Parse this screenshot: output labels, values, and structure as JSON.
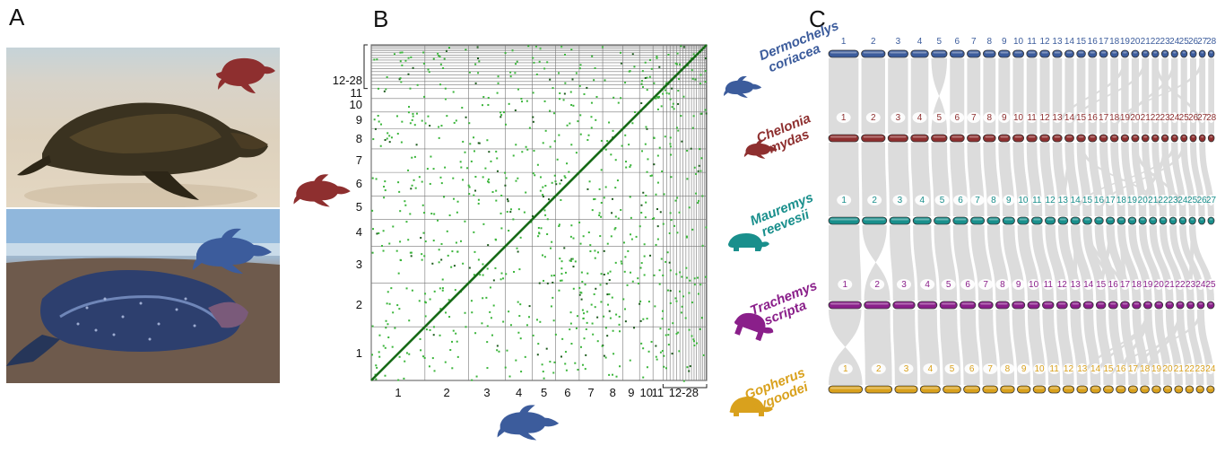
{
  "panels": {
    "a": "A",
    "b": "B",
    "c": "C"
  },
  "colors": {
    "dermochelys": "#3c5c9c",
    "chelonia": "#8e2f2f",
    "mauremys": "#198f8c",
    "trachemys": "#8a1f8a",
    "gopherus": "#d9a11d",
    "dot_green": "#3bb53b",
    "diagonal": "#176b17",
    "ribbon": "#d6d6d6"
  },
  "dotplot": {
    "y_ticks": [
      "12-28",
      "11",
      "10",
      "9",
      "8",
      "7",
      "6",
      "5",
      "4",
      "3",
      "2",
      "1"
    ],
    "x_ticks": [
      "1",
      "2",
      "3",
      "4",
      "5",
      "6",
      "7",
      "8",
      "9",
      "10",
      "11",
      "12-28"
    ]
  },
  "species": [
    {
      "genus": "Dermochelys",
      "epithet": "coriacea",
      "chromosomes": [
        "1",
        "2",
        "3",
        "4",
        "5",
        "6",
        "7",
        "8",
        "9",
        "10",
        "11",
        "12",
        "13",
        "14",
        "15",
        "16",
        "17",
        "18",
        "19",
        "20",
        "21",
        "22",
        "23",
        "24",
        "25",
        "26",
        "27",
        "28"
      ]
    },
    {
      "genus": "Chelonia",
      "epithet": "mydas",
      "chromosomes": [
        "1",
        "2",
        "3",
        "4",
        "5",
        "6",
        "7",
        "8",
        "9",
        "10",
        "11",
        "12",
        "13",
        "14",
        "15",
        "16",
        "17",
        "18",
        "19",
        "20",
        "21",
        "22",
        "23",
        "24",
        "25",
        "26",
        "27",
        "28"
      ]
    },
    {
      "genus": "Mauremys",
      "epithet": "reevesii",
      "chromosomes": [
        "1",
        "2",
        "3",
        "4",
        "5",
        "6",
        "7",
        "8",
        "9",
        "10",
        "11",
        "12",
        "13",
        "14",
        "15",
        "16",
        "17",
        "18",
        "19",
        "20",
        "21",
        "22",
        "23",
        "24",
        "25",
        "26",
        "27"
      ]
    },
    {
      "genus": "Trachemys",
      "epithet": "scripta",
      "chromosomes": [
        "1",
        "2",
        "3",
        "4",
        "5",
        "6",
        "7",
        "8",
        "9",
        "10",
        "11",
        "12",
        "13",
        "14",
        "15",
        "16",
        "17",
        "18",
        "19",
        "20",
        "21",
        "22",
        "23",
        "24",
        "25"
      ]
    },
    {
      "genus": "Gopherus",
      "epithet": "evgoodei",
      "chromosomes": [
        "1",
        "2",
        "3",
        "4",
        "5",
        "6",
        "7",
        "8",
        "9",
        "10",
        "11",
        "12",
        "13",
        "14",
        "15",
        "16",
        "17",
        "18",
        "19",
        "20",
        "21",
        "22",
        "23",
        "24"
      ]
    }
  ],
  "icons": {
    "top_photo": "green-sea-turtle-photo",
    "bottom_photo": "leatherback-turtle-photo",
    "sea_turtle": "sea-turtle-silhouette-icon",
    "pond_turtle": "pond-turtle-silhouette-icon",
    "tortoise": "tortoise-silhouette-icon"
  }
}
